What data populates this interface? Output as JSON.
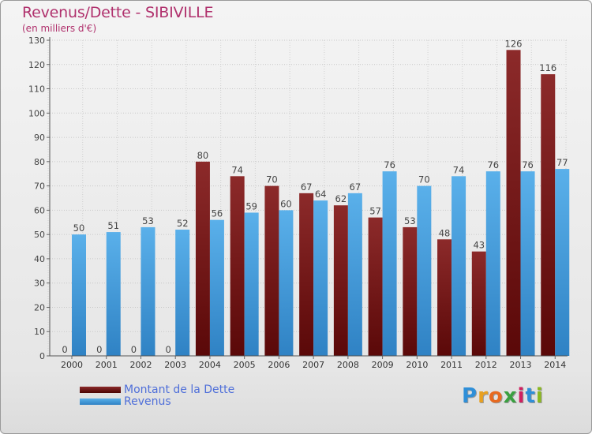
{
  "title": "Revenus/Dette - SIBIVILLE",
  "subtitle": "(en milliers d'€)",
  "chart_data": {
    "type": "bar",
    "categories": [
      "2000",
      "2001",
      "2002",
      "2003",
      "2004",
      "2005",
      "2006",
      "2007",
      "2008",
      "2009",
      "2010",
      "2011",
      "2012",
      "2013",
      "2014"
    ],
    "series": [
      {
        "name": "Montant de la Dette",
        "color": "#7a1f1f",
        "values": [
          0,
          0,
          0,
          0,
          80,
          74,
          70,
          67,
          62,
          57,
          53,
          48,
          43,
          126,
          116
        ]
      },
      {
        "name": "Revenus",
        "color": "#4aa3e0",
        "values": [
          50,
          51,
          53,
          52,
          56,
          59,
          60,
          64,
          67,
          76,
          70,
          74,
          76,
          76,
          77
        ]
      }
    ],
    "ylim": [
      0,
      130
    ],
    "yticks": [
      0,
      10,
      20,
      30,
      40,
      50,
      60,
      70,
      80,
      90,
      100,
      110,
      120,
      130
    ],
    "grid": true,
    "legend": "bottom-left"
  },
  "legend": {
    "items": [
      {
        "label": "Montant de la Dette",
        "color": "#7a1f1f"
      },
      {
        "label": "Revenus",
        "color": "#4aa3e0"
      }
    ]
  },
  "logo": {
    "letters": [
      "P",
      "r",
      "o",
      "x",
      "i",
      "t",
      "i"
    ],
    "colors": [
      "#2f8fd8",
      "#e8a020",
      "#e86a20",
      "#3aa040",
      "#d02060",
      "#2f8fd8",
      "#8ab820"
    ]
  }
}
